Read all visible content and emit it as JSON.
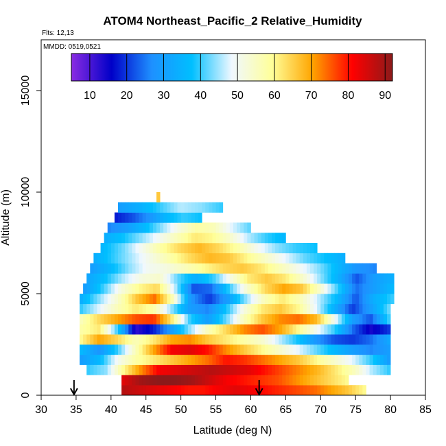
{
  "chart_data": {
    "type": "heatmap",
    "title": "ATOM4 Northeast_Pacific_2 Relative_Humidity",
    "flights_label": "Flts: 12,13",
    "dates_label": "MMDD: 0519,0521",
    "xlabel": "Latitude (deg N)",
    "ylabel": "Altitude (m)",
    "xlim": [
      30,
      85
    ],
    "ylim": [
      0,
      17500
    ],
    "x_ticks": [
      30,
      35,
      40,
      45,
      50,
      55,
      60,
      65,
      70,
      75,
      80,
      85
    ],
    "y_ticks": [
      0,
      5000,
      10000,
      15000
    ],
    "colorbar": {
      "min": 5,
      "max": 92,
      "ticks": [
        10,
        20,
        30,
        40,
        50,
        60,
        70,
        80,
        90
      ],
      "colors": [
        "#8a2be2",
        "#0000c8",
        "#1e90ff",
        "#00bfff",
        "#f0f8ff",
        "#ffff99",
        "#ffa500",
        "#ff0000",
        "#8b1a1a"
      ]
    },
    "markers": [
      {
        "lat": 34.7,
        "alt": 0
      },
      {
        "lat": 61.2,
        "alt": 0
      }
    ],
    "bands": [
      {
        "alt": 250,
        "x0": 41.5,
        "x1": 76.5,
        "v": [
          88,
          86,
          84,
          82,
          80,
          80,
          82,
          84,
          82,
          80,
          78,
          76,
          74,
          70,
          66,
          60
        ]
      },
      {
        "alt": 750,
        "x0": 41.5,
        "x1": 74.0,
        "v": [
          84,
          90,
          92,
          92,
          90,
          86,
          82,
          80,
          78,
          76,
          72,
          68,
          64,
          60
        ]
      },
      {
        "alt": 1250,
        "x0": 36.5,
        "x1": 80.0,
        "v": [
          40,
          44,
          60,
          72,
          82,
          84,
          86,
          88,
          86,
          84,
          80,
          76,
          72,
          68,
          62,
          56,
          46,
          40
        ]
      },
      {
        "alt": 1750,
        "x0": 35.5,
        "x1": 80.0,
        "v": [
          30,
          36,
          50,
          58,
          62,
          66,
          70,
          74,
          80,
          78,
          74,
          70,
          66,
          60,
          54,
          48,
          40,
          30
        ]
      },
      {
        "alt": 2250,
        "x0": 35.5,
        "x1": 80.0,
        "v": [
          36,
          28,
          40,
          56,
          70,
          82,
          84,
          80,
          72,
          66,
          60,
          54,
          48,
          42,
          36,
          30,
          26,
          30
        ]
      },
      {
        "alt": 2750,
        "x0": 35.5,
        "x1": 80.0,
        "v": [
          60,
          70,
          64,
          56,
          62,
          70,
          72,
          66,
          62,
          58,
          54,
          46,
          38,
          28,
          22,
          20,
          24,
          32
        ]
      },
      {
        "alt": 3250,
        "x0": 35.5,
        "x1": 80.0,
        "v": [
          58,
          62,
          40,
          12,
          18,
          30,
          44,
          56,
          64,
          72,
          76,
          70,
          60,
          50,
          40,
          24,
          14,
          20
        ]
      },
      {
        "alt": 3750,
        "x0": 35.5,
        "x1": 80.0,
        "v": [
          56,
          64,
          70,
          76,
          78,
          62,
          40,
          30,
          42,
          56,
          66,
          72,
          74,
          68,
          50,
          30,
          22,
          40
        ]
      },
      {
        "alt": 4250,
        "x0": 35.5,
        "x1": 80.0,
        "v": [
          40,
          48,
          56,
          62,
          58,
          44,
          30,
          26,
          38,
          52,
          62,
          66,
          60,
          48,
          34,
          20,
          30,
          42
        ]
      },
      {
        "alt": 4750,
        "x0": 35.5,
        "x1": 80.5,
        "v": [
          34,
          44,
          54,
          66,
          74,
          56,
          28,
          20,
          30,
          44,
          56,
          62,
          56,
          46,
          36,
          22,
          34,
          40
        ]
      },
      {
        "alt": 5250,
        "x0": 36.0,
        "x1": 80.5,
        "v": [
          30,
          40,
          52,
          60,
          64,
          46,
          22,
          24,
          40,
          54,
          64,
          70,
          66,
          54,
          40,
          24,
          30,
          36
        ]
      },
      {
        "alt": 5750,
        "x0": 36.5,
        "x1": 80.5,
        "v": [
          32,
          38,
          46,
          52,
          54,
          42,
          34,
          40,
          52,
          62,
          66,
          62,
          54,
          44,
          34,
          22,
          30,
          34
        ]
      },
      {
        "alt": 6250,
        "x0": 37.0,
        "x1": 78.0,
        "v": [
          30,
          36,
          44,
          50,
          52,
          56,
          60,
          64,
          66,
          62,
          56,
          50,
          44,
          36,
          28,
          26
        ]
      },
      {
        "alt": 6750,
        "x0": 37.5,
        "x1": 73.5,
        "v": [
          34,
          40,
          46,
          52,
          58,
          64,
          68,
          66,
          60,
          54,
          48,
          42,
          38,
          34
        ]
      },
      {
        "alt": 7250,
        "x0": 38.5,
        "x1": 69.5,
        "v": [
          36,
          42,
          50,
          58,
          64,
          68,
          64,
          58,
          50,
          44,
          40,
          38
        ]
      },
      {
        "alt": 7750,
        "x0": 39.0,
        "x1": 65.0,
        "v": [
          34,
          38,
          44,
          50,
          56,
          62,
          60,
          54,
          46,
          40,
          36
        ]
      },
      {
        "alt": 8250,
        "x0": 39.5,
        "x1": 60.0,
        "v": [
          26,
          30,
          36,
          44,
          52,
          58,
          56,
          48,
          42
        ]
      },
      {
        "alt": 8750,
        "x0": 40.5,
        "x1": 53.0,
        "v": [
          18,
          22,
          28,
          36,
          40,
          38
        ]
      },
      {
        "alt": 9250,
        "x0": 41.0,
        "x1": 56.0,
        "v": [
          30,
          34,
          40,
          46,
          44,
          40
        ]
      },
      {
        "alt": 9750,
        "x0": 46.5,
        "x1": 47.0,
        "v": [
          66
        ]
      }
    ]
  }
}
